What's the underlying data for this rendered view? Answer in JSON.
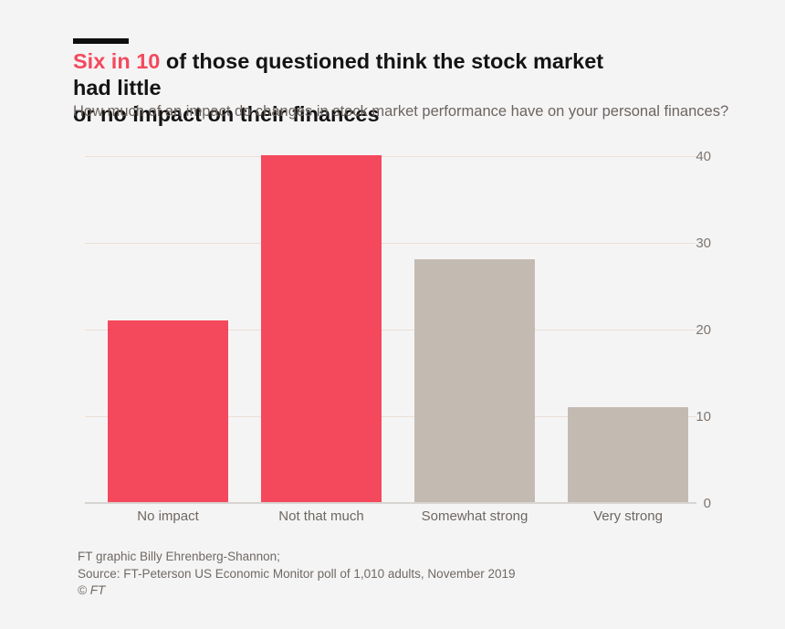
{
  "page": {
    "background": "#f5f4f5",
    "accent_color": "#f4495c"
  },
  "header": {
    "headline": {
      "accent": "Six in 10",
      "line1_rest": " of those questioned think the stock market had little",
      "line2": "or no impact on their finances"
    },
    "subtitle": "How much of an impact do changes in stock market performance have on your personal finances?"
  },
  "chart_data": {
    "type": "bar",
    "title": "Six in 10 of those questioned think the stock market had little or no impact on their finances",
    "subtitle": "How much of an impact do changes in stock market performance have on your personal finances?",
    "categories": [
      "No impact",
      "Not that much",
      "Somewhat strong",
      "Very strong"
    ],
    "values": [
      21,
      40,
      28,
      11
    ],
    "bar_colors": [
      "#f4495c",
      "#f4495c",
      "#c3bab2",
      "#c3bab2"
    ],
    "xlabel": "",
    "ylabel": "",
    "ylim": [
      0,
      42
    ],
    "yticks": [
      0,
      10,
      20,
      30,
      40
    ],
    "grid": "horizontal-only",
    "ytick_position": "right",
    "gridline_color": "#eadfd5",
    "axis_line_color": "#d7d4d1"
  },
  "footer": {
    "line1": "FT graphic Billy Ehrenberg-Shannon;",
    "line2": "Source: FT-Peterson US Economic Monitor poll of 1,010 adults, November 2019",
    "line3": "© FT"
  }
}
